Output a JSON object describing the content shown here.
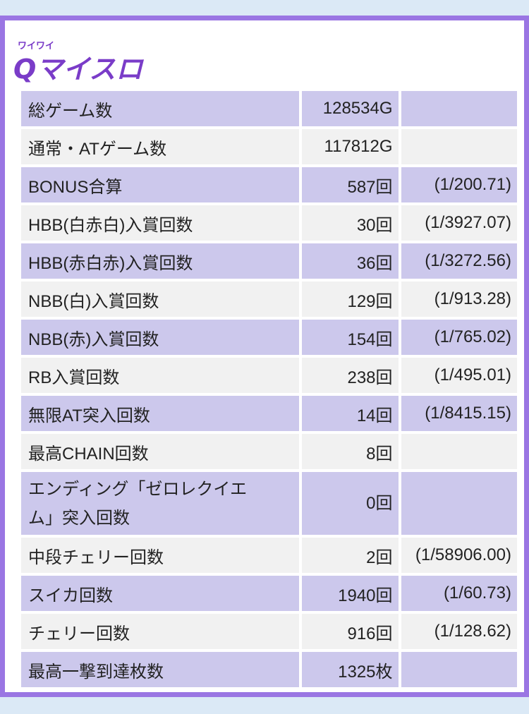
{
  "logo": {
    "ruby": "ワイワイ",
    "main": "Qマイスロ",
    "colors": {
      "fill": "#7a3cc8",
      "stroke": "#ffffff",
      "outline": "#5a2a9a"
    }
  },
  "stats": {
    "rows": [
      {
        "label": "総ゲーム数",
        "value": "128534G",
        "rate": ""
      },
      {
        "label": "通常・ATゲーム数",
        "value": "117812G",
        "rate": ""
      },
      {
        "label": "BONUS合算",
        "value": "587回",
        "rate": "(1/200.71)"
      },
      {
        "label": "HBB(白赤白)入賞回数",
        "value": "30回",
        "rate": "(1/3927.07)"
      },
      {
        "label": "HBB(赤白赤)入賞回数",
        "value": "36回",
        "rate": "(1/3272.56)"
      },
      {
        "label": "NBB(白)入賞回数",
        "value": "129回",
        "rate": "(1/913.28)"
      },
      {
        "label": "NBB(赤)入賞回数",
        "value": "154回",
        "rate": "(1/765.02)"
      },
      {
        "label": "RB入賞回数",
        "value": "238回",
        "rate": "(1/495.01)"
      },
      {
        "label": "無限AT突入回数",
        "value": "14回",
        "rate": "(1/8415.15)"
      },
      {
        "label": "最高CHAIN回数",
        "value": "8回",
        "rate": ""
      },
      {
        "label": "エンディング「ゼロレクイエム」突入回数",
        "value": "0回",
        "rate": ""
      },
      {
        "label": "中段チェリー回数",
        "value": "2回",
        "rate": "(1/58906.00)"
      },
      {
        "label": "スイカ回数",
        "value": "1940回",
        "rate": "(1/60.73)"
      },
      {
        "label": "チェリー回数",
        "value": "916回",
        "rate": "(1/128.62)"
      },
      {
        "label": "最高一撃到達枚数",
        "value": "1325枚",
        "rate": ""
      }
    ]
  },
  "colors": {
    "row_odd": "#ccc8ec",
    "row_even": "#f1f1f1",
    "frame": "#9a76e3",
    "page_bg": "#dbe9f6"
  }
}
